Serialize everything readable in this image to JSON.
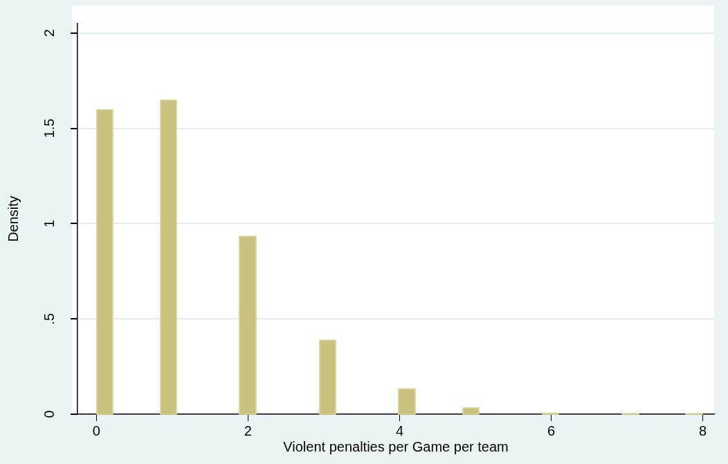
{
  "chart_data": {
    "type": "histogram",
    "xlabel": "Violent penalties per Game per team",
    "ylabel": "Density",
    "bins": [
      0,
      0.22,
      0.84,
      1.06,
      1.88,
      2.11,
      2.94,
      3.16,
      3.98,
      4.21,
      4.83,
      5.05,
      5.88,
      6.1,
      6.93,
      7.16,
      7.77,
      8
    ],
    "values": [
      1.6,
      0,
      1.65,
      0,
      0.935,
      0,
      0.39,
      0,
      0.135,
      0,
      0.035,
      0,
      0.008,
      0,
      0.005,
      0,
      0.005
    ],
    "color": "#c9c27f",
    "xlim": [
      -0.25,
      8.15
    ],
    "xticks": [
      0,
      2,
      4,
      6,
      8
    ],
    "ylim": [
      0,
      2.05
    ],
    "yticks": [
      0,
      {
        "value": 0.5,
        "label": ".5"
      },
      1,
      1.5,
      2
    ],
    "grid": "y",
    "legend": false
  }
}
